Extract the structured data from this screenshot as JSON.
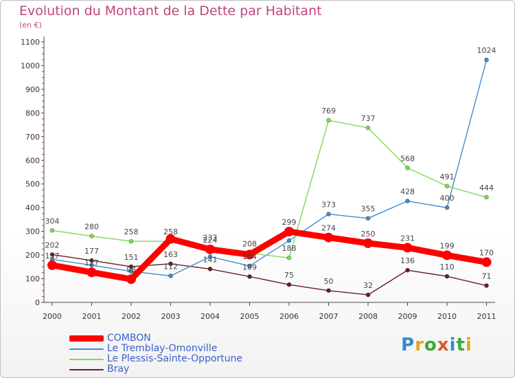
{
  "header": {
    "title": "Evolution du Montant de la Dette par Habitant",
    "subtitle": "(en €)"
  },
  "logo": {
    "text": "Proxiti",
    "colors": [
      "#2e8bd6",
      "#e8a11a",
      "#3ea83a",
      "#e2552d",
      "#2e8bd6",
      "#3ea83a",
      "#e8a11a"
    ]
  },
  "chart_data": {
    "type": "line",
    "x": [
      "2000",
      "2001",
      "2002",
      "2003",
      "2004",
      "2005",
      "2006",
      "2007",
      "2008",
      "2009",
      "2010",
      "2011"
    ],
    "ylim": [
      0,
      1100
    ],
    "yticks": [
      "0",
      "100",
      "200",
      "300",
      "400",
      "500",
      "600",
      "700",
      "800",
      "900",
      "1000",
      "1100"
    ],
    "grid": false,
    "legend_position": "bottom-left",
    "series": [
      {
        "name": "COMBON",
        "color": "#ff0000",
        "values": [
          157,
          127,
          98,
          268,
          224,
          202,
          299,
          274,
          250,
          231,
          199,
          170
        ],
        "labels": [
          "157",
          "127",
          "98",
          "",
          "224",
          "",
          "299",
          "274",
          "250",
          "231",
          "199",
          "170"
        ]
      },
      {
        "name": "Le Tremblay-Omonville",
        "color": "#3f8ccf",
        "values": [
          182,
          157,
          131,
          112,
          193,
          154,
          261,
          373,
          355,
          428,
          400,
          1024
        ],
        "labels": [
          "",
          "",
          "",
          "112",
          "",
          "154",
          "",
          "373",
          "355",
          "428",
          "400",
          "1024"
        ]
      },
      {
        "name": "Le Plessis-Sainte-Opportune",
        "color": "#7ed957",
        "values": [
          304,
          280,
          258,
          258,
          233,
          208,
          188,
          769,
          737,
          568,
          491,
          444
        ],
        "labels": [
          "304",
          "280",
          "258",
          "258",
          "233",
          "208",
          "188",
          "769",
          "737",
          "568",
          "491",
          "444"
        ]
      },
      {
        "name": "Bray",
        "color": "#6b1d22",
        "values": [
          202,
          177,
          151,
          163,
          141,
          109,
          75,
          50,
          32,
          136,
          110,
          71
        ],
        "labels": [
          "202",
          "177",
          "151",
          "163",
          "141",
          "109",
          "75",
          "50",
          "32",
          "136",
          "110",
          "71"
        ]
      }
    ]
  }
}
